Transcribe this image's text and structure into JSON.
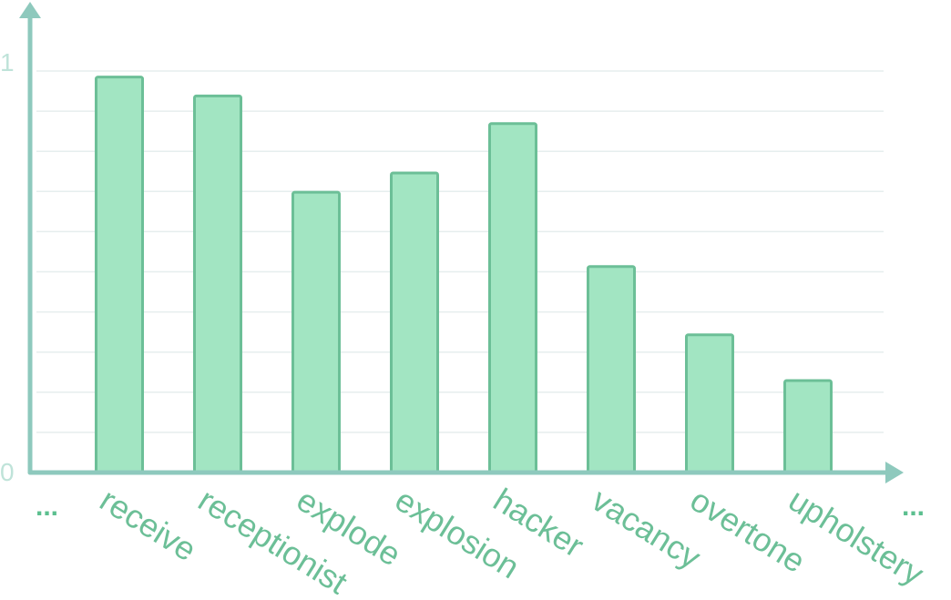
{
  "chart_data": {
    "type": "bar",
    "categories": [
      "receive",
      "receptionist",
      "explode",
      "explosion",
      "hacker",
      "vacancy",
      "overtone",
      "upholstery"
    ],
    "values": [
      0.985,
      0.938,
      0.698,
      0.746,
      0.869,
      0.513,
      0.343,
      0.229
    ],
    "ylim": [
      0,
      1
    ],
    "y_ticks": [
      "0",
      "1"
    ],
    "leading_ellipsis": "...",
    "trailing_ellipsis": "...",
    "grid": true,
    "colors": {
      "bar_fill": "#a2e5c2",
      "bar_stroke": "#6cbf97",
      "axis": "#8ec9bd",
      "grid": "#e6eeee",
      "label": "#6cbf97",
      "tick": "#bfe3d9"
    }
  }
}
